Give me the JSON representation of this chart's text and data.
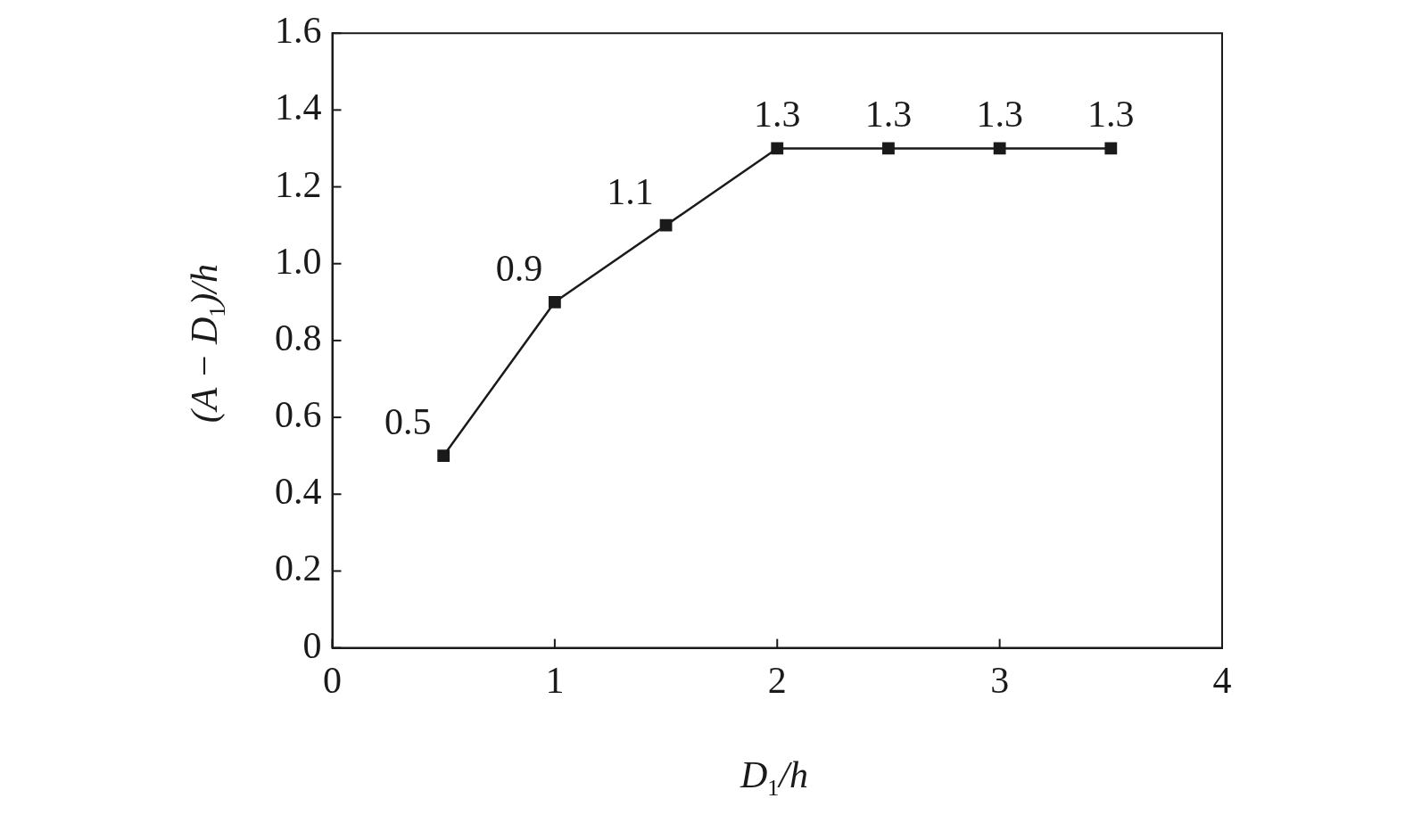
{
  "chart_data": {
    "type": "line",
    "xlabel": "D$_{1}$/h",
    "ylabel": "(A − D$_{1}$)/h",
    "x": [
      0.5,
      1,
      1.5,
      2,
      2.5,
      3,
      3.5
    ],
    "series": [
      {
        "color": "#1a1a1a",
        "values": [
          0.5,
          0.9,
          1.1,
          1.3,
          1.3,
          1.3,
          1.3
        ]
      }
    ],
    "xlim": [
      0,
      4
    ],
    "xticks": [
      0,
      1,
      2,
      3,
      4
    ],
    "ylim": [
      0,
      1.6
    ],
    "yticks": [
      0,
      0.2,
      0.4,
      0.6,
      0.8,
      {
        "value": 1,
        "label": "1.0"
      },
      1.2,
      1.4,
      1.6
    ],
    "data_labels": true,
    "marker": "square",
    "line_style": "solid",
    "grid": false,
    "legend": false
  }
}
